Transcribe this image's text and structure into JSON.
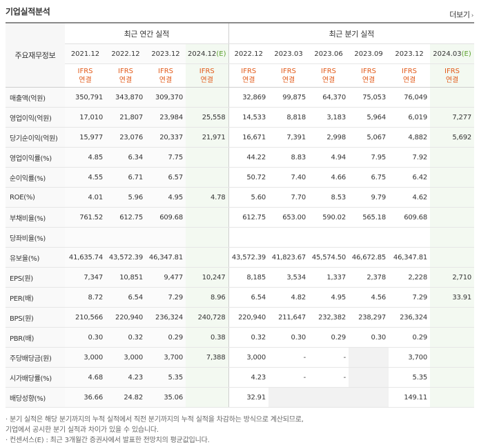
{
  "header": {
    "title": "기업실적분석",
    "more_label": "더보기",
    "more_arrow": "›"
  },
  "table": {
    "row_head": "주요재무정보",
    "group_annual": "최근 연간 실적",
    "group_quarter": "최근 분기 실적",
    "ifrs_line1": "IFRS",
    "ifrs_line2": "연결",
    "annual_dates": [
      "2021.12",
      "2022.12",
      "2023.12",
      "2024.12"
    ],
    "annual_est_suffix": "(E)",
    "quarter_dates": [
      "2022.12",
      "2023.03",
      "2023.06",
      "2023.09",
      "2023.12",
      "2024.03"
    ],
    "quarter_est_suffix": "(E)",
    "rows": [
      {
        "label": "매출액(억원)",
        "values": [
          "350,791",
          "343,870",
          "309,370",
          "",
          "32,869",
          "99,875",
          "64,370",
          "75,053",
          "76,049",
          ""
        ]
      },
      {
        "label": "영업이익(억원)",
        "values": [
          "17,010",
          "21,807",
          "23,984",
          "25,558",
          "14,533",
          "8,818",
          "3,183",
          "5,964",
          "6,019",
          "7,277"
        ]
      },
      {
        "label": "당기순이익(억원)",
        "values": [
          "15,977",
          "23,076",
          "20,337",
          "21,971",
          "16,671",
          "7,391",
          "2,998",
          "5,067",
          "4,882",
          "5,692"
        ]
      },
      {
        "label": "영업이익률(%)",
        "values": [
          "4.85",
          "6.34",
          "7.75",
          "",
          "44.22",
          "8.83",
          "4.94",
          "7.95",
          "7.92",
          ""
        ]
      },
      {
        "label": "순이익률(%)",
        "values": [
          "4.55",
          "6.71",
          "6.57",
          "",
          "50.72",
          "7.40",
          "4.66",
          "6.75",
          "6.42",
          ""
        ]
      },
      {
        "label": "ROE(%)",
        "values": [
          "4.01",
          "5.96",
          "4.95",
          "4.78",
          "5.60",
          "7.70",
          "8.53",
          "9.79",
          "4.62",
          ""
        ]
      },
      {
        "label": "부채비율(%)",
        "values": [
          "761.52",
          "612.75",
          "609.68",
          "",
          "612.75",
          "653.00",
          "590.02",
          "565.18",
          "609.68",
          ""
        ]
      },
      {
        "label": "당좌비율(%)",
        "values": [
          "",
          "",
          "",
          "",
          "",
          "",
          "",
          "",
          "",
          ""
        ]
      },
      {
        "label": "유보율(%)",
        "values": [
          "41,635.74",
          "43,572.39",
          "46,347.81",
          "",
          "43,572.39",
          "41,823.67",
          "45,574.50",
          "46,672.85",
          "46,347.81",
          ""
        ]
      },
      {
        "label": "EPS(원)",
        "values": [
          "7,347",
          "10,851",
          "9,477",
          "10,247",
          "8,185",
          "3,534",
          "1,337",
          "2,378",
          "2,228",
          "2,710"
        ]
      },
      {
        "label": "PER(배)",
        "values": [
          "8.72",
          "6.54",
          "7.29",
          "8.96",
          "6.54",
          "4.82",
          "4.95",
          "4.56",
          "7.29",
          "33.91"
        ]
      },
      {
        "label": "BPS(원)",
        "values": [
          "210,566",
          "220,940",
          "236,324",
          "240,728",
          "220,940",
          "211,647",
          "232,382",
          "238,297",
          "236,324",
          ""
        ]
      },
      {
        "label": "PBR(배)",
        "values": [
          "0.30",
          "0.32",
          "0.29",
          "0.38",
          "0.32",
          "0.30",
          "0.29",
          "0.30",
          "0.29",
          ""
        ]
      },
      {
        "label": "주당배당금(원)",
        "values": [
          "3,000",
          "3,000",
          "3,700",
          "7,388",
          "3,000",
          "-",
          "-",
          "",
          "3,700",
          ""
        ]
      },
      {
        "label": "시가배당률(%)",
        "values": [
          "4.68",
          "4.23",
          "5.35",
          "",
          "4.23",
          "-",
          "-",
          "",
          "5.35",
          ""
        ]
      },
      {
        "label": "배당성향(%)",
        "values": [
          "36.66",
          "24.82",
          "35.06",
          "",
          "32.91",
          "",
          "",
          "",
          "149.11",
          ""
        ]
      }
    ]
  },
  "notes": [
    "· 분기 실적은 해당 분기까지의 누적 실적에서 직전 분기까지의 누적 실적을 차감하는 방식으로 계산되므로,",
    "  기업에서 공시한 분기 실적과 차이가 있을 수 있습니다.",
    "· 컨센서스(E) : 최근 3개월간 증권사에서 발표한 전망치의 평균값입니다."
  ]
}
